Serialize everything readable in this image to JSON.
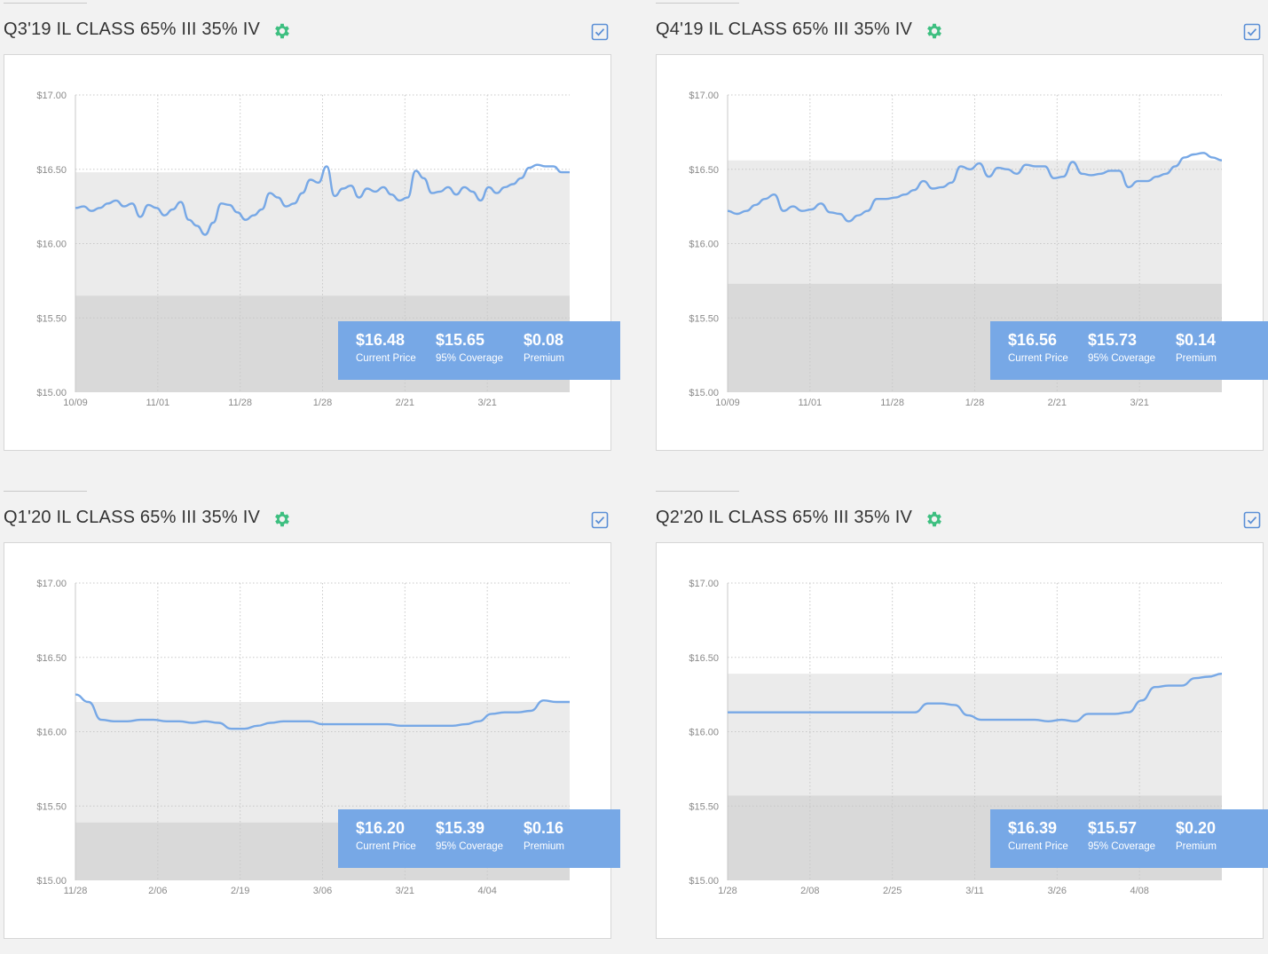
{
  "colors": {
    "background": "#f2f2f2",
    "line": "#77a8e6",
    "band_light": "#ebebeb",
    "band_dark": "#d9d9d9",
    "stats_bg": "#77a8e6",
    "gear": "#3dbf80",
    "checkbox": "#5b8fd6"
  },
  "icons": {
    "settings": "gear-icon",
    "select": "checkbox-checked-icon"
  },
  "panels": [
    {
      "title": "Q3'19 IL CLASS 65% III 35% IV",
      "stats": [
        {
          "value": "$16.48",
          "label": "Current Price"
        },
        {
          "value": "$15.65",
          "label": "95% Coverage"
        },
        {
          "value": "$0.08",
          "label": "Premium"
        }
      ],
      "chart_data": {
        "type": "line",
        "ylim": [
          15.0,
          17.0
        ],
        "y_ticks": [
          "$17.00",
          "$16.50",
          "$16.00",
          "$15.50",
          "$15.00"
        ],
        "x_ticks": [
          "10/09",
          "11/01",
          "11/28",
          "1/28",
          "2/21",
          "3/21"
        ],
        "band_upper": 16.48,
        "band_lower": 15.65,
        "values": [
          16.24,
          16.25,
          16.22,
          16.24,
          16.27,
          16.29,
          16.25,
          16.27,
          16.18,
          16.26,
          16.24,
          16.19,
          16.23,
          16.28,
          16.16,
          16.12,
          16.06,
          16.14,
          16.27,
          16.26,
          16.21,
          16.16,
          16.19,
          16.23,
          16.34,
          16.31,
          16.25,
          16.27,
          16.34,
          16.43,
          16.41,
          16.52,
          16.32,
          16.37,
          16.39,
          16.31,
          16.37,
          16.35,
          16.38,
          16.33,
          16.29,
          16.31,
          16.49,
          16.44,
          16.34,
          16.35,
          16.38,
          16.33,
          16.38,
          16.35,
          16.29,
          16.38,
          16.34,
          16.38,
          16.4,
          16.44,
          16.51,
          16.53,
          16.52,
          16.52,
          16.48,
          16.48
        ]
      }
    },
    {
      "title": "Q4'19 IL CLASS 65% III 35% IV",
      "stats": [
        {
          "value": "$16.56",
          "label": "Current Price"
        },
        {
          "value": "$15.73",
          "label": "95% Coverage"
        },
        {
          "value": "$0.14",
          "label": "Premium"
        }
      ],
      "chart_data": {
        "type": "line",
        "ylim": [
          15.0,
          17.0
        ],
        "y_ticks": [
          "$17.00",
          "$16.50",
          "$16.00",
          "$15.50",
          "$15.00"
        ],
        "x_ticks": [
          "10/09",
          "11/01",
          "11/28",
          "1/28",
          "2/21",
          "3/21"
        ],
        "band_upper": 16.56,
        "band_lower": 15.73,
        "values": [
          16.22,
          16.2,
          16.22,
          16.26,
          16.3,
          16.33,
          16.22,
          16.25,
          16.22,
          16.23,
          16.27,
          16.21,
          16.2,
          16.15,
          16.19,
          16.22,
          16.3,
          16.3,
          16.31,
          16.33,
          16.36,
          16.42,
          16.37,
          16.38,
          16.41,
          16.52,
          16.5,
          16.54,
          16.45,
          16.51,
          16.5,
          16.47,
          16.53,
          16.52,
          16.52,
          16.44,
          16.45,
          16.55,
          16.47,
          16.46,
          16.47,
          16.49,
          16.49,
          16.38,
          16.42,
          16.42,
          16.45,
          16.47,
          16.52,
          16.58,
          16.6,
          16.61,
          16.58,
          16.56
        ]
      }
    },
    {
      "title": "Q1'20 IL CLASS 65% III 35% IV",
      "stats": [
        {
          "value": "$16.20",
          "label": "Current Price"
        },
        {
          "value": "$15.39",
          "label": "95% Coverage"
        },
        {
          "value": "$0.16",
          "label": "Premium"
        }
      ],
      "chart_data": {
        "type": "line",
        "ylim": [
          15.0,
          17.0
        ],
        "y_ticks": [
          "$17.00",
          "$16.50",
          "$16.00",
          "$15.50",
          "$15.00"
        ],
        "x_ticks": [
          "11/28",
          "2/06",
          "2/19",
          "3/06",
          "3/21",
          "4/04"
        ],
        "band_upper": 16.2,
        "band_lower": 15.39,
        "values": [
          16.25,
          16.2,
          16.08,
          16.07,
          16.07,
          16.08,
          16.08,
          16.07,
          16.07,
          16.06,
          16.07,
          16.06,
          16.02,
          16.02,
          16.04,
          16.06,
          16.07,
          16.07,
          16.07,
          16.05,
          16.05,
          16.05,
          16.05,
          16.05,
          16.05,
          16.04,
          16.04,
          16.04,
          16.04,
          16.04,
          16.05,
          16.07,
          16.12,
          16.13,
          16.13,
          16.14,
          16.21,
          16.2,
          16.2
        ]
      }
    },
    {
      "title": "Q2'20 IL CLASS 65% III 35% IV",
      "stats": [
        {
          "value": "$16.39",
          "label": "Current Price"
        },
        {
          "value": "$15.57",
          "label": "95% Coverage"
        },
        {
          "value": "$0.20",
          "label": "Premium"
        }
      ],
      "chart_data": {
        "type": "line",
        "ylim": [
          15.0,
          17.0
        ],
        "y_ticks": [
          "$17.00",
          "$16.50",
          "$16.00",
          "$15.50",
          "$15.00"
        ],
        "x_ticks": [
          "1/28",
          "2/08",
          "2/25",
          "3/11",
          "3/26",
          "4/08"
        ],
        "band_upper": 16.39,
        "band_lower": 15.57,
        "values": [
          16.13,
          16.13,
          16.13,
          16.13,
          16.13,
          16.13,
          16.13,
          16.13,
          16.13,
          16.13,
          16.13,
          16.13,
          16.13,
          16.13,
          16.13,
          16.19,
          16.19,
          16.18,
          16.11,
          16.08,
          16.08,
          16.08,
          16.08,
          16.08,
          16.07,
          16.08,
          16.07,
          16.12,
          16.12,
          16.12,
          16.13,
          16.21,
          16.3,
          16.31,
          16.31,
          16.36,
          16.37,
          16.39
        ]
      }
    }
  ]
}
